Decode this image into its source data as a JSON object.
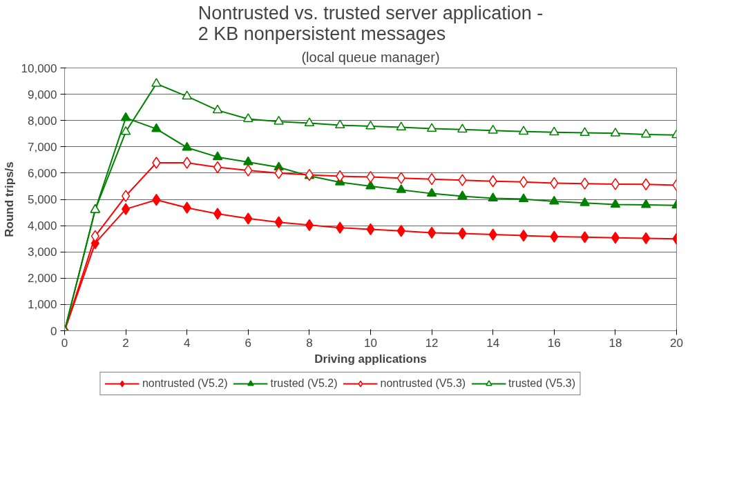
{
  "chart_data": {
    "type": "line",
    "title": "Nontrusted vs. trusted server application -\n2 KB nonpersistent messages",
    "subtitle": "(local queue manager)",
    "xlabel": "Driving applications",
    "ylabel": "Round trips/s",
    "x": [
      0,
      1,
      2,
      3,
      4,
      5,
      6,
      7,
      8,
      9,
      10,
      11,
      12,
      13,
      14,
      15,
      16,
      17,
      18,
      19,
      20
    ],
    "xlim": [
      0,
      20
    ],
    "xticks": [
      0,
      2,
      4,
      6,
      8,
      10,
      12,
      14,
      16,
      18,
      20
    ],
    "ylim": [
      0,
      10000
    ],
    "yticks": [
      {
        "value": 0,
        "label": "0"
      },
      {
        "value": 1000,
        "label": "1,000"
      },
      {
        "value": 2000,
        "label": "2,000"
      },
      {
        "value": 3000,
        "label": "3,000"
      },
      {
        "value": 4000,
        "label": "4,000"
      },
      {
        "value": 5000,
        "label": "5,000"
      },
      {
        "value": 6000,
        "label": "6,000"
      },
      {
        "value": 7000,
        "label": "7,000"
      },
      {
        "value": 8000,
        "label": "8,000"
      },
      {
        "value": 9000,
        "label": "9,000"
      },
      {
        "value": 10000,
        "label": "10,000"
      }
    ],
    "grid": "y",
    "legend": "bottom",
    "line_style": "solid",
    "series": [
      {
        "name": "nontrusted (V5.2)",
        "color": "#ff0000",
        "marker": "diamond",
        "values": [
          0,
          3330,
          4630,
          4980,
          4680,
          4450,
          4270,
          4130,
          4020,
          3920,
          3860,
          3800,
          3730,
          3700,
          3660,
          3620,
          3580,
          3560,
          3540,
          3520,
          3500
        ]
      },
      {
        "name": "trusted (V5.2)",
        "color": "#008000",
        "marker": "triangle",
        "values": [
          0,
          4600,
          8100,
          7680,
          6970,
          6610,
          6420,
          6220,
          5890,
          5650,
          5500,
          5360,
          5220,
          5120,
          5040,
          5010,
          4920,
          4860,
          4800,
          4790,
          4770
        ]
      },
      {
        "name": "nontrusted (V5.3)",
        "color": "#ff0000",
        "marker": "diamond-open",
        "values": [
          0,
          3600,
          5130,
          6390,
          6390,
          6220,
          6100,
          6000,
          5930,
          5880,
          5850,
          5810,
          5770,
          5730,
          5690,
          5660,
          5620,
          5600,
          5580,
          5570,
          5540
        ]
      },
      {
        "name": "trusted (V5.3)",
        "color": "#008000",
        "marker": "triangle-open",
        "values": [
          0,
          4600,
          7570,
          9400,
          8920,
          8390,
          8060,
          7960,
          7900,
          7820,
          7780,
          7740,
          7690,
          7660,
          7620,
          7580,
          7550,
          7530,
          7510,
          7470,
          7450
        ]
      }
    ]
  }
}
